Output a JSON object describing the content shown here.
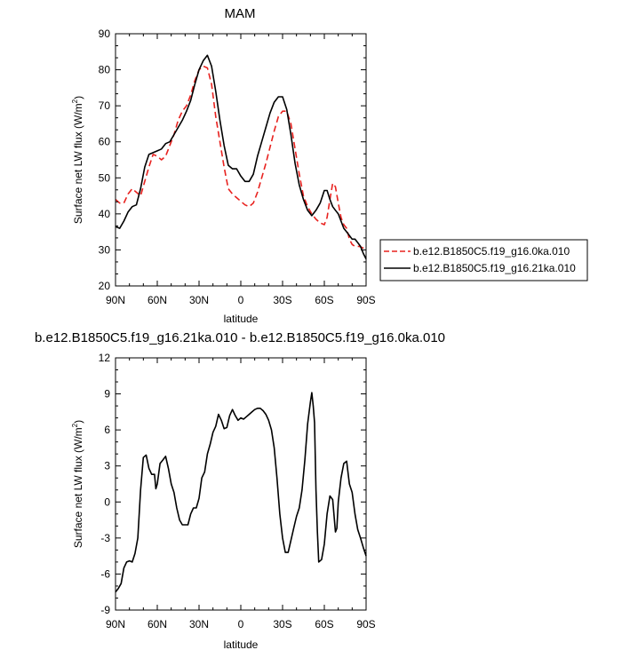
{
  "chart_data": [
    {
      "type": "line",
      "title": "MAM",
      "xlabel": "latitude",
      "ylabel": "Surface net LW flux (W/m",
      "ylabel_sup": "2",
      "ylabel_close": ")",
      "xlim": [
        90,
        -90
      ],
      "ylim": [
        20,
        90
      ],
      "xticks": [
        90,
        60,
        30,
        0,
        -30,
        -60,
        -90
      ],
      "xtick_labels": [
        "90N",
        "60N",
        "30N",
        "0",
        "30S",
        "60S",
        "90S"
      ],
      "yticks": [
        20,
        30,
        40,
        50,
        60,
        70,
        80,
        90
      ],
      "ytick_labels": [
        "20",
        "30",
        "40",
        "50",
        "60",
        "70",
        "80",
        "90"
      ],
      "grid": false,
      "legend_position": "right",
      "series": [
        {
          "name": "b.e12.B1850C5.f19_g16.0ka.010",
          "color": "#e8221f",
          "dash": true,
          "points": [
            [
              90,
              44
            ],
            [
              87,
              43
            ],
            [
              84,
              43
            ],
            [
              81,
              45.5
            ],
            [
              78,
              47
            ],
            [
              75,
              46
            ],
            [
              72,
              45
            ],
            [
              69,
              49
            ],
            [
              66,
              53
            ],
            [
              63,
              56.5
            ],
            [
              60,
              56
            ],
            [
              57,
              55
            ],
            [
              54,
              56
            ],
            [
              51,
              59
            ],
            [
              48,
              62
            ],
            [
              45,
              66
            ],
            [
              42,
              68.5
            ],
            [
              39,
              70
            ],
            [
              36,
              73
            ],
            [
              33,
              77
            ],
            [
              30,
              80
            ],
            [
              27,
              81
            ],
            [
              24,
              80.5
            ],
            [
              21,
              76
            ],
            [
              18,
              67
            ],
            [
              15,
              60
            ],
            [
              12,
              53
            ],
            [
              9,
              47
            ],
            [
              6,
              45.5
            ],
            [
              3,
              44.5
            ],
            [
              0,
              43.5
            ],
            [
              -3,
              42.5
            ],
            [
              -6,
              42
            ],
            [
              -9,
              43
            ],
            [
              -12,
              46
            ],
            [
              -15,
              50
            ],
            [
              -18,
              54
            ],
            [
              -21,
              58.5
            ],
            [
              -24,
              63
            ],
            [
              -27,
              67
            ],
            [
              -30,
              68.5
            ],
            [
              -33,
              68.5
            ],
            [
              -36,
              65
            ],
            [
              -39,
              58
            ],
            [
              -42,
              51
            ],
            [
              -45,
              45
            ],
            [
              -48,
              42
            ],
            [
              -51,
              40
            ],
            [
              -54,
              38.5
            ],
            [
              -57,
              37.5
            ],
            [
              -60,
              37
            ],
            [
              -62,
              39
            ],
            [
              -64,
              44
            ],
            [
              -66,
              48.5
            ],
            [
              -68,
              47.5
            ],
            [
              -70,
              43
            ],
            [
              -72,
              39
            ],
            [
              -74,
              37
            ],
            [
              -76,
              36
            ],
            [
              -78,
              33
            ],
            [
              -80,
              31.5
            ],
            [
              -82,
              31
            ],
            [
              -85,
              31
            ],
            [
              -88,
              30.5
            ],
            [
              -90,
              30
            ]
          ]
        },
        {
          "name": "b.e12.B1850C5.f19_g16.21ka.010",
          "color": "#000000",
          "dash": false,
          "points": [
            [
              90,
              36.5
            ],
            [
              87,
              36
            ],
            [
              84,
              38
            ],
            [
              81,
              40.5
            ],
            [
              78,
              42
            ],
            [
              75,
              42.5
            ],
            [
              72,
              47
            ],
            [
              69,
              53
            ],
            [
              66,
              56.5
            ],
            [
              63,
              57
            ],
            [
              60,
              57.5
            ],
            [
              57,
              58
            ],
            [
              54,
              59.5
            ],
            [
              51,
              60
            ],
            [
              48,
              62
            ],
            [
              45,
              64
            ],
            [
              42,
              66
            ],
            [
              39,
              68.5
            ],
            [
              36,
              71.5
            ],
            [
              33,
              76
            ],
            [
              30,
              80
            ],
            [
              27,
              82.5
            ],
            [
              24,
              84
            ],
            [
              21,
              81
            ],
            [
              18,
              74
            ],
            [
              15,
              66
            ],
            [
              12,
              59
            ],
            [
              9,
              53.5
            ],
            [
              6,
              52.5
            ],
            [
              3,
              52.5
            ],
            [
              0,
              50.5
            ],
            [
              -3,
              49
            ],
            [
              -6,
              49
            ],
            [
              -9,
              51
            ],
            [
              -12,
              56
            ],
            [
              -15,
              60
            ],
            [
              -18,
              64
            ],
            [
              -21,
              68
            ],
            [
              -24,
              71
            ],
            [
              -27,
              72.5
            ],
            [
              -30,
              72.5
            ],
            [
              -33,
              69
            ],
            [
              -36,
              62
            ],
            [
              -39,
              54
            ],
            [
              -42,
              48
            ],
            [
              -45,
              44
            ],
            [
              -48,
              41
            ],
            [
              -51,
              39.5
            ],
            [
              -54,
              41
            ],
            [
              -57,
              43
            ],
            [
              -60,
              46.5
            ],
            [
              -62,
              46.5
            ],
            [
              -64,
              44
            ],
            [
              -66,
              42
            ],
            [
              -68,
              41
            ],
            [
              -70,
              40
            ],
            [
              -72,
              38
            ],
            [
              -74,
              36
            ],
            [
              -76,
              35
            ],
            [
              -78,
              34
            ],
            [
              -80,
              33
            ],
            [
              -82,
              33
            ],
            [
              -84,
              32
            ],
            [
              -86,
              31
            ],
            [
              -88,
              29
            ],
            [
              -90,
              27.5
            ]
          ]
        }
      ]
    },
    {
      "type": "line",
      "title": "b.e12.B1850C5.f19_g16.21ka.010 - b.e12.B1850C5.f19_g16.0ka.010",
      "xlabel": "latitude",
      "ylabel": "Surface net LW flux (W/m",
      "ylabel_sup": "2",
      "ylabel_close": ")",
      "xlim": [
        90,
        -90
      ],
      "ylim": [
        -9,
        12
      ],
      "xticks": [
        90,
        60,
        30,
        0,
        -30,
        -60,
        -90
      ],
      "xtick_labels": [
        "90N",
        "60N",
        "30N",
        "0",
        "30S",
        "60S",
        "90S"
      ],
      "yticks": [
        -9,
        -6,
        -3,
        0,
        3,
        6,
        9,
        12
      ],
      "ytick_labels": [
        "-9",
        "-6",
        "-3",
        "0",
        "3",
        "6",
        "9",
        "12"
      ],
      "grid": false,
      "series": [
        {
          "color": "#000000",
          "dash": false,
          "points": [
            [
              90,
              -7.5
            ],
            [
              88,
              -7.2
            ],
            [
              86,
              -6.8
            ],
            [
              84,
              -5.5
            ],
            [
              82,
              -5
            ],
            [
              80,
              -4.9
            ],
            [
              78,
              -5
            ],
            [
              76,
              -4.3
            ],
            [
              74,
              -3
            ],
            [
              72,
              1
            ],
            [
              70,
              3.7
            ],
            [
              68,
              3.9
            ],
            [
              66,
              2.8
            ],
            [
              64,
              2.3
            ],
            [
              62,
              2.3
            ],
            [
              61,
              1.1
            ],
            [
              60,
              1.5
            ],
            [
              58,
              3.2
            ],
            [
              56,
              3.5
            ],
            [
              54,
              3.8
            ],
            [
              52,
              2.8
            ],
            [
              50,
              1.5
            ],
            [
              48,
              0.8
            ],
            [
              46,
              -0.5
            ],
            [
              44,
              -1.5
            ],
            [
              42,
              -1.9
            ],
            [
              40,
              -1.9
            ],
            [
              38,
              -1.9
            ],
            [
              36,
              -1
            ],
            [
              34,
              -0.5
            ],
            [
              32,
              -0.5
            ],
            [
              30,
              0.3
            ],
            [
              28,
              2
            ],
            [
              26,
              2.5
            ],
            [
              24,
              4
            ],
            [
              22,
              4.8
            ],
            [
              20,
              5.8
            ],
            [
              18,
              6.3
            ],
            [
              16,
              7.3
            ],
            [
              14,
              6.8
            ],
            [
              12,
              6.1
            ],
            [
              10,
              6.2
            ],
            [
              8,
              7.2
            ],
            [
              6,
              7.7
            ],
            [
              4,
              7.2
            ],
            [
              2,
              6.8
            ],
            [
              0,
              7
            ],
            [
              -2,
              6.9
            ],
            [
              -4,
              7.1
            ],
            [
              -6,
              7.3
            ],
            [
              -8,
              7.5
            ],
            [
              -10,
              7.7
            ],
            [
              -12,
              7.8
            ],
            [
              -14,
              7.8
            ],
            [
              -16,
              7.6
            ],
            [
              -18,
              7.3
            ],
            [
              -20,
              6.8
            ],
            [
              -22,
              6
            ],
            [
              -24,
              4.5
            ],
            [
              -26,
              2
            ],
            [
              -28,
              -1
            ],
            [
              -30,
              -3
            ],
            [
              -32,
              -4.2
            ],
            [
              -34,
              -4.2
            ],
            [
              -36,
              -3.2
            ],
            [
              -38,
              -2.2
            ],
            [
              -40,
              -1.2
            ],
            [
              -42,
              -0.5
            ],
            [
              -44,
              1
            ],
            [
              -46,
              3.5
            ],
            [
              -48,
              6.5
            ],
            [
              -50,
              8.3
            ],
            [
              -51,
              9.1
            ],
            [
              -52,
              8
            ],
            [
              -53,
              6.6
            ],
            [
              -54,
              1
            ],
            [
              -55,
              -2.5
            ],
            [
              -56,
              -5
            ],
            [
              -58,
              -4.8
            ],
            [
              -60,
              -3.5
            ],
            [
              -62,
              -1
            ],
            [
              -64,
              0.5
            ],
            [
              -66,
              0.2
            ],
            [
              -68,
              -2.5
            ],
            [
              -69,
              -2.2
            ],
            [
              -70,
              0
            ],
            [
              -72,
              2
            ],
            [
              -74,
              3.2
            ],
            [
              -76,
              3.4
            ],
            [
              -78,
              1.5
            ],
            [
              -80,
              0.8
            ],
            [
              -82,
              -1
            ],
            [
              -84,
              -2.3
            ],
            [
              -86,
              -3
            ],
            [
              -88,
              -3.8
            ],
            [
              -90,
              -4.5
            ]
          ]
        }
      ]
    }
  ]
}
